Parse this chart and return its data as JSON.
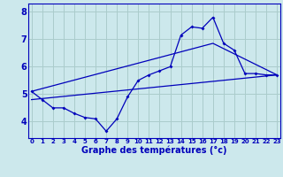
{
  "xlabel": "Graphe des températures (°c)",
  "bg_color": "#cce8ec",
  "grid_color": "#aacccc",
  "line_color": "#0000bb",
  "hours": [
    0,
    1,
    2,
    3,
    4,
    5,
    6,
    7,
    8,
    9,
    10,
    11,
    12,
    13,
    14,
    15,
    16,
    17,
    18,
    19,
    20,
    21,
    22,
    23
  ],
  "line1": [
    5.1,
    4.8,
    4.5,
    4.5,
    4.3,
    4.15,
    4.1,
    3.65,
    4.1,
    4.9,
    5.5,
    5.7,
    5.85,
    6.0,
    7.15,
    7.45,
    7.4,
    7.8,
    6.85,
    6.6,
    5.75,
    5.75,
    5.7,
    5.7
  ],
  "line2_x": [
    0,
    23
  ],
  "line2_y": [
    4.8,
    5.7
  ],
  "line3_x": [
    0,
    17,
    23
  ],
  "line3_y": [
    5.1,
    6.85,
    5.7
  ],
  "ylim": [
    3.4,
    8.3
  ],
  "xlim": [
    -0.3,
    23.3
  ],
  "yticks": [
    4,
    5,
    6,
    7,
    8
  ],
  "xticks": [
    0,
    1,
    2,
    3,
    4,
    5,
    6,
    7,
    8,
    9,
    10,
    11,
    12,
    13,
    14,
    15,
    16,
    17,
    18,
    19,
    20,
    21,
    22,
    23
  ],
  "xlabel_fontsize": 7,
  "ytick_fontsize": 7,
  "xtick_fontsize": 5
}
